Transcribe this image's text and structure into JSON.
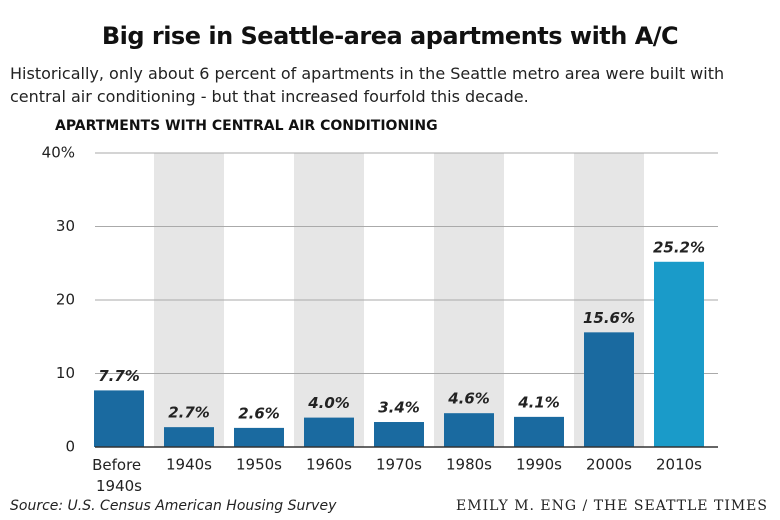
{
  "chart_data": {
    "type": "bar",
    "title": "Big rise in Seattle-area apartments with A/C",
    "subtitle": "Historically, only about 6 percent of apartments in the Seattle metro area were built with central air conditioning - but that increased fourfold this decade.",
    "y_label": "APARTMENTS WITH CENTRAL AIR CONDITIONING",
    "source": "Source: U.S. Census American Housing Survey",
    "credit": "EMILY M. ENG / THE SEATTLE TIMES",
    "categories": [
      "Before 1940s",
      "1940s",
      "1950s",
      "1960s",
      "1970s",
      "1980s",
      "1990s",
      "2000s",
      "2010s"
    ],
    "values": [
      7.7,
      2.7,
      2.6,
      4.0,
      3.4,
      4.6,
      4.1,
      15.6,
      25.2
    ],
    "value_labels": [
      "7.7%",
      "2.7%",
      "2.6%",
      "4.0%",
      "3.4%",
      "4.6%",
      "4.1%",
      "15.6%",
      "25.2%"
    ],
    "colors": [
      "#1a6aa0",
      "#1a6aa0",
      "#1a6aa0",
      "#1a6aa0",
      "#1a6aa0",
      "#1a6aa0",
      "#1a6aa0",
      "#1a6aa0",
      "#1a9bc9"
    ],
    "ylim": [
      0,
      40
    ],
    "yticks": [
      0,
      10,
      20,
      30,
      {
        "value": 40,
        "label": "40%"
      }
    ],
    "grid": true
  }
}
